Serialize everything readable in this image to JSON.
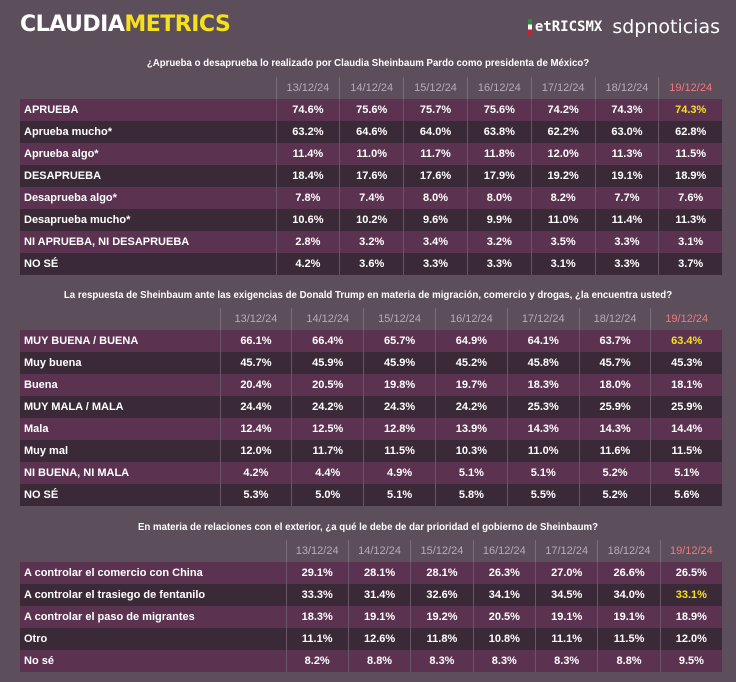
{
  "header": {
    "brand_a": "CLAUDIA",
    "brand_b": "METRICS",
    "logo1": "etRICSMX",
    "logo2": "sdpnoticias"
  },
  "dates": [
    "13/12/24",
    "14/12/24",
    "15/12/24",
    "16/12/24",
    "17/12/24",
    "18/12/24",
    "19/12/24"
  ],
  "tables": [
    {
      "question": "¿Aprueba o desaprueba lo realizado por Claudia Sheinbaum Pardo como presidenta de México?",
      "highlight_row": 0,
      "rows": [
        {
          "label": "APRUEBA",
          "values": [
            "74.6%",
            "75.6%",
            "75.7%",
            "75.6%",
            "74.2%",
            "74.3%",
            "74.3%"
          ]
        },
        {
          "label": "Aprueba mucho*",
          "values": [
            "63.2%",
            "64.6%",
            "64.0%",
            "63.8%",
            "62.2%",
            "63.0%",
            "62.8%"
          ]
        },
        {
          "label": "Aprueba algo*",
          "values": [
            "11.4%",
            "11.0%",
            "11.7%",
            "11.8%",
            "12.0%",
            "11.3%",
            "11.5%"
          ]
        },
        {
          "label": "DESAPRUEBA",
          "values": [
            "18.4%",
            "17.6%",
            "17.6%",
            "17.9%",
            "19.2%",
            "19.1%",
            "18.9%"
          ]
        },
        {
          "label": "Desaprueba algo*",
          "values": [
            "7.8%",
            "7.4%",
            "8.0%",
            "8.0%",
            "8.2%",
            "7.7%",
            "7.6%"
          ]
        },
        {
          "label": "Desaprueba mucho*",
          "values": [
            "10.6%",
            "10.2%",
            "9.6%",
            "9.9%",
            "11.0%",
            "11.4%",
            "11.3%"
          ]
        },
        {
          "label": "NI APRUEBA, NI DESAPRUEBA",
          "values": [
            "2.8%",
            "3.2%",
            "3.4%",
            "3.2%",
            "3.5%",
            "3.3%",
            "3.1%"
          ]
        },
        {
          "label": "NO SÉ",
          "values": [
            "4.2%",
            "3.6%",
            "3.3%",
            "3.3%",
            "3.1%",
            "3.3%",
            "3.7%"
          ]
        }
      ]
    },
    {
      "question": "La respuesta de Sheinbaum ante las exigencias de Donald Trump en materia de migración, comercio y drogas, ¿la encuentra usted?",
      "highlight_row": 0,
      "rows": [
        {
          "label": "MUY BUENA / BUENA",
          "values": [
            "66.1%",
            "66.4%",
            "65.7%",
            "64.9%",
            "64.1%",
            "63.7%",
            "63.4%"
          ]
        },
        {
          "label": "Muy buena",
          "values": [
            "45.7%",
            "45.9%",
            "45.9%",
            "45.2%",
            "45.8%",
            "45.7%",
            "45.3%"
          ]
        },
        {
          "label": "Buena",
          "values": [
            "20.4%",
            "20.5%",
            "19.8%",
            "19.7%",
            "18.3%",
            "18.0%",
            "18.1%"
          ]
        },
        {
          "label": "MUY MALA / MALA",
          "values": [
            "24.4%",
            "24.2%",
            "24.3%",
            "24.2%",
            "25.3%",
            "25.9%",
            "25.9%"
          ]
        },
        {
          "label": "Mala",
          "values": [
            "12.4%",
            "12.5%",
            "12.8%",
            "13.9%",
            "14.3%",
            "14.3%",
            "14.4%"
          ]
        },
        {
          "label": "Muy mal",
          "values": [
            "12.0%",
            "11.7%",
            "11.5%",
            "10.3%",
            "11.0%",
            "11.6%",
            "11.5%"
          ]
        },
        {
          "label": "NI BUENA, NI MALA",
          "values": [
            "4.2%",
            "4.4%",
            "4.9%",
            "5.1%",
            "5.1%",
            "5.2%",
            "5.1%"
          ]
        },
        {
          "label": "NO SÉ",
          "values": [
            "5.3%",
            "5.0%",
            "5.1%",
            "5.8%",
            "5.5%",
            "5.2%",
            "5.6%"
          ]
        }
      ]
    },
    {
      "question": "En materia de relaciones con el exterior, ¿a qué le debe de dar prioridad el gobierno de Sheinbaum?",
      "highlight_row": 1,
      "rows": [
        {
          "label": "A controlar el comercio con China",
          "values": [
            "29.1%",
            "28.1%",
            "28.1%",
            "26.3%",
            "27.0%",
            "26.6%",
            "26.5%"
          ]
        },
        {
          "label": "A controlar el trasiego de fentanilo",
          "values": [
            "33.3%",
            "31.4%",
            "32.6%",
            "34.1%",
            "34.5%",
            "34.0%",
            "33.1%"
          ]
        },
        {
          "label": "A controlar el paso de migrantes",
          "values": [
            "18.3%",
            "19.1%",
            "19.2%",
            "20.5%",
            "19.1%",
            "19.1%",
            "18.9%"
          ]
        },
        {
          "label": "Otro",
          "values": [
            "11.1%",
            "12.6%",
            "11.8%",
            "10.8%",
            "11.1%",
            "11.5%",
            "12.0%"
          ]
        },
        {
          "label": "No sé",
          "values": [
            "8.2%",
            "8.8%",
            "8.3%",
            "8.3%",
            "8.3%",
            "8.8%",
            "9.5%"
          ]
        }
      ]
    }
  ]
}
